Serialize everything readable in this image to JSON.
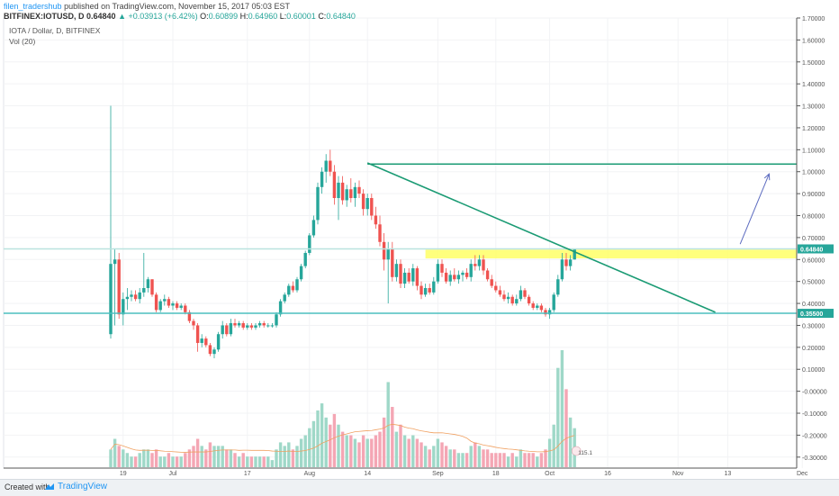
{
  "header": {
    "user": "filen_tradershub",
    "published": "published on TradingView.com, November 15, 2017 05:03 EST",
    "symbol_line": "BITFINEX:IOTUSD, D",
    "last": "0.64840",
    "change": "+0.03913 (+6.42%)",
    "o_label": "O:",
    "o": "0.60899",
    "h_label": "H:",
    "h": "0.64960",
    "l_label": "L:",
    "l": "0.60001",
    "c_label": "C:",
    "c": "0.64840"
  },
  "legend": {
    "title": "IOTA / Dollar, D, BITFINEX",
    "vol": "Vol (20)"
  },
  "footer": {
    "created": "Created with",
    "brand": "TradingView"
  },
  "colors": {
    "up": "#26a69a",
    "down": "#ef5350",
    "vol_up": "#9fd8c8",
    "vol_down": "#f4a6b4",
    "trendline": "#1b9b74",
    "support_line": "#4bbfbf",
    "zone": "#ffff66",
    "arrow": "#5c6bc0",
    "vol_ma": "#f0a060"
  },
  "chart_data": {
    "type": "candlestick",
    "y_axis": {
      "ticks": [
        "1.70000",
        "1.60000",
        "1.50000",
        "1.40000",
        "1.30000",
        "1.20000",
        "1.10000",
        "1.00000",
        "0.90000",
        "0.80000",
        "0.70000",
        "0.60000",
        "0.50000",
        "0.40000",
        "0.30000",
        "0.20000",
        "0.10000",
        "-0.00000",
        "-0.10000",
        "-0.20000",
        "-0.30000"
      ],
      "min": -0.35,
      "max": 1.7
    },
    "x_axis": {
      "ticks": [
        {
          "label": "19",
          "index": 3
        },
        {
          "label": "Jul",
          "index": 15
        },
        {
          "label": "17",
          "index": 33
        },
        {
          "label": "Aug",
          "index": 48
        },
        {
          "label": "14",
          "index": 62
        },
        {
          "label": "Sep",
          "index": 79
        },
        {
          "label": "18",
          "index": 93
        },
        {
          "label": "Oct",
          "index": 106
        },
        {
          "label": "16",
          "index": 120
        },
        {
          "label": "Nov",
          "index": 137
        },
        {
          "label": "13",
          "index": 149
        },
        {
          "label": "Dec",
          "index": 167
        }
      ]
    },
    "price_labels": [
      {
        "text": "0.64840",
        "value": 0.6484,
        "color": "#26a69a"
      },
      {
        "text": "0.35500",
        "value": 0.355,
        "color": "#26a69a"
      }
    ],
    "horizontal_lines": [
      {
        "value": 1.035,
        "start_index": 62,
        "color": "#1b9b74"
      },
      {
        "value": 0.355,
        "start_index": -1,
        "color": "#4bbfbf"
      },
      {
        "value": 0.6484,
        "start_index": -1,
        "color": "#b9e3df"
      }
    ],
    "trendline": {
      "from": {
        "index": 62,
        "value": 1.04
      },
      "to": {
        "index": 146,
        "value": 0.36
      }
    },
    "zone": {
      "low": 0.605,
      "high": 0.645,
      "start_index": 76
    },
    "arrow": {
      "from": {
        "index": 152,
        "value": 0.67
      },
      "to": {
        "index": 159,
        "value": 0.99
      }
    },
    "volume_label": "115.1",
    "candles": [
      {
        "o": 0.26,
        "h": 1.3,
        "l": 0.24,
        "c": 0.58,
        "v": 0.05
      },
      {
        "o": 0.58,
        "h": 0.65,
        "l": 0.3,
        "c": 0.6,
        "v": 0.08
      },
      {
        "o": 0.6,
        "h": 0.63,
        "l": 0.33,
        "c": 0.35,
        "v": 0.06
      },
      {
        "o": 0.35,
        "h": 0.45,
        "l": 0.3,
        "c": 0.42,
        "v": 0.05
      },
      {
        "o": 0.42,
        "h": 0.47,
        "l": 0.37,
        "c": 0.43,
        "v": 0.04
      },
      {
        "o": 0.43,
        "h": 0.46,
        "l": 0.41,
        "c": 0.44,
        "v": 0.03
      },
      {
        "o": 0.44,
        "h": 0.46,
        "l": 0.41,
        "c": 0.42,
        "v": 0.03
      },
      {
        "o": 0.42,
        "h": 0.47,
        "l": 0.4,
        "c": 0.45,
        "v": 0.04
      },
      {
        "o": 0.45,
        "h": 0.63,
        "l": 0.43,
        "c": 0.47,
        "v": 0.05
      },
      {
        "o": 0.47,
        "h": 0.52,
        "l": 0.45,
        "c": 0.51,
        "v": 0.05
      },
      {
        "o": 0.51,
        "h": 0.51,
        "l": 0.43,
        "c": 0.44,
        "v": 0.04
      },
      {
        "o": 0.44,
        "h": 0.45,
        "l": 0.36,
        "c": 0.37,
        "v": 0.05
      },
      {
        "o": 0.37,
        "h": 0.42,
        "l": 0.36,
        "c": 0.41,
        "v": 0.03
      },
      {
        "o": 0.41,
        "h": 0.44,
        "l": 0.39,
        "c": 0.42,
        "v": 0.03
      },
      {
        "o": 0.42,
        "h": 0.43,
        "l": 0.38,
        "c": 0.39,
        "v": 0.04
      },
      {
        "o": 0.39,
        "h": 0.41,
        "l": 0.37,
        "c": 0.4,
        "v": 0.03
      },
      {
        "o": 0.4,
        "h": 0.41,
        "l": 0.37,
        "c": 0.38,
        "v": 0.03
      },
      {
        "o": 0.38,
        "h": 0.4,
        "l": 0.37,
        "c": 0.39,
        "v": 0.03
      },
      {
        "o": 0.39,
        "h": 0.4,
        "l": 0.35,
        "c": 0.36,
        "v": 0.04
      },
      {
        "o": 0.36,
        "h": 0.37,
        "l": 0.31,
        "c": 0.32,
        "v": 0.05
      },
      {
        "o": 0.32,
        "h": 0.33,
        "l": 0.28,
        "c": 0.3,
        "v": 0.06
      },
      {
        "o": 0.3,
        "h": 0.31,
        "l": 0.18,
        "c": 0.22,
        "v": 0.08
      },
      {
        "o": 0.22,
        "h": 0.26,
        "l": 0.2,
        "c": 0.24,
        "v": 0.06
      },
      {
        "o": 0.24,
        "h": 0.25,
        "l": 0.2,
        "c": 0.21,
        "v": 0.05
      },
      {
        "o": 0.21,
        "h": 0.22,
        "l": 0.16,
        "c": 0.17,
        "v": 0.07
      },
      {
        "o": 0.17,
        "h": 0.2,
        "l": 0.15,
        "c": 0.19,
        "v": 0.06
      },
      {
        "o": 0.19,
        "h": 0.27,
        "l": 0.18,
        "c": 0.26,
        "v": 0.06
      },
      {
        "o": 0.26,
        "h": 0.32,
        "l": 0.24,
        "c": 0.3,
        "v": 0.06
      },
      {
        "o": 0.3,
        "h": 0.31,
        "l": 0.25,
        "c": 0.26,
        "v": 0.05
      },
      {
        "o": 0.26,
        "h": 0.33,
        "l": 0.25,
        "c": 0.31,
        "v": 0.05
      },
      {
        "o": 0.31,
        "h": 0.33,
        "l": 0.29,
        "c": 0.3,
        "v": 0.04
      },
      {
        "o": 0.3,
        "h": 0.32,
        "l": 0.29,
        "c": 0.31,
        "v": 0.03
      },
      {
        "o": 0.31,
        "h": 0.32,
        "l": 0.28,
        "c": 0.29,
        "v": 0.04
      },
      {
        "o": 0.29,
        "h": 0.31,
        "l": 0.28,
        "c": 0.3,
        "v": 0.03
      },
      {
        "o": 0.3,
        "h": 0.31,
        "l": 0.28,
        "c": 0.29,
        "v": 0.03
      },
      {
        "o": 0.29,
        "h": 0.31,
        "l": 0.28,
        "c": 0.3,
        "v": 0.03
      },
      {
        "o": 0.3,
        "h": 0.32,
        "l": 0.29,
        "c": 0.31,
        "v": 0.03
      },
      {
        "o": 0.31,
        "h": 0.32,
        "l": 0.29,
        "c": 0.3,
        "v": 0.03
      },
      {
        "o": 0.3,
        "h": 0.31,
        "l": 0.29,
        "c": 0.3,
        "v": 0.03
      },
      {
        "o": 0.3,
        "h": 0.31,
        "l": 0.29,
        "c": 0.3,
        "v": 0.02
      },
      {
        "o": 0.3,
        "h": 0.36,
        "l": 0.29,
        "c": 0.35,
        "v": 0.05
      },
      {
        "o": 0.35,
        "h": 0.42,
        "l": 0.34,
        "c": 0.41,
        "v": 0.07
      },
      {
        "o": 0.41,
        "h": 0.45,
        "l": 0.4,
        "c": 0.44,
        "v": 0.06
      },
      {
        "o": 0.44,
        "h": 0.49,
        "l": 0.43,
        "c": 0.48,
        "v": 0.07
      },
      {
        "o": 0.48,
        "h": 0.5,
        "l": 0.45,
        "c": 0.46,
        "v": 0.05
      },
      {
        "o": 0.46,
        "h": 0.52,
        "l": 0.45,
        "c": 0.51,
        "v": 0.06
      },
      {
        "o": 0.51,
        "h": 0.58,
        "l": 0.5,
        "c": 0.57,
        "v": 0.08
      },
      {
        "o": 0.57,
        "h": 0.64,
        "l": 0.56,
        "c": 0.63,
        "v": 0.09
      },
      {
        "o": 0.63,
        "h": 0.72,
        "l": 0.62,
        "c": 0.71,
        "v": 0.11
      },
      {
        "o": 0.71,
        "h": 0.8,
        "l": 0.7,
        "c": 0.78,
        "v": 0.13
      },
      {
        "o": 0.78,
        "h": 0.95,
        "l": 0.76,
        "c": 0.93,
        "v": 0.16
      },
      {
        "o": 0.93,
        "h": 1.02,
        "l": 0.9,
        "c": 1.0,
        "v": 0.18
      },
      {
        "o": 1.0,
        "h": 1.08,
        "l": 0.95,
        "c": 1.05,
        "v": 0.14
      },
      {
        "o": 1.05,
        "h": 1.1,
        "l": 0.98,
        "c": 1.0,
        "v": 0.12
      },
      {
        "o": 1.0,
        "h": 1.03,
        "l": 0.85,
        "c": 0.88,
        "v": 0.15
      },
      {
        "o": 0.88,
        "h": 0.98,
        "l": 0.78,
        "c": 0.95,
        "v": 0.12
      },
      {
        "o": 0.95,
        "h": 0.98,
        "l": 0.85,
        "c": 0.87,
        "v": 0.1
      },
      {
        "o": 0.87,
        "h": 0.94,
        "l": 0.84,
        "c": 0.92,
        "v": 0.09
      },
      {
        "o": 0.92,
        "h": 0.97,
        "l": 0.86,
        "c": 0.88,
        "v": 0.09
      },
      {
        "o": 0.88,
        "h": 0.95,
        "l": 0.84,
        "c": 0.93,
        "v": 0.08
      },
      {
        "o": 0.93,
        "h": 0.96,
        "l": 0.88,
        "c": 0.9,
        "v": 0.07
      },
      {
        "o": 0.9,
        "h": 0.92,
        "l": 0.8,
        "c": 0.83,
        "v": 0.09
      },
      {
        "o": 0.83,
        "h": 0.9,
        "l": 0.8,
        "c": 0.88,
        "v": 0.08
      },
      {
        "o": 0.88,
        "h": 0.9,
        "l": 0.78,
        "c": 0.8,
        "v": 0.08
      },
      {
        "o": 0.8,
        "h": 0.84,
        "l": 0.74,
        "c": 0.76,
        "v": 0.09
      },
      {
        "o": 0.76,
        "h": 0.8,
        "l": 0.66,
        "c": 0.68,
        "v": 0.1
      },
      {
        "o": 0.68,
        "h": 0.72,
        "l": 0.55,
        "c": 0.6,
        "v": 0.14
      },
      {
        "o": 0.6,
        "h": 0.68,
        "l": 0.4,
        "c": 0.65,
        "v": 0.24
      },
      {
        "o": 0.65,
        "h": 0.68,
        "l": 0.5,
        "c": 0.52,
        "v": 0.17
      },
      {
        "o": 0.52,
        "h": 0.6,
        "l": 0.5,
        "c": 0.58,
        "v": 0.1
      },
      {
        "o": 0.58,
        "h": 0.6,
        "l": 0.47,
        "c": 0.49,
        "v": 0.12
      },
      {
        "o": 0.49,
        "h": 0.56,
        "l": 0.47,
        "c": 0.54,
        "v": 0.09
      },
      {
        "o": 0.54,
        "h": 0.56,
        "l": 0.49,
        "c": 0.5,
        "v": 0.08
      },
      {
        "o": 0.5,
        "h": 0.58,
        "l": 0.48,
        "c": 0.56,
        "v": 0.09
      },
      {
        "o": 0.56,
        "h": 0.57,
        "l": 0.46,
        "c": 0.48,
        "v": 0.08
      },
      {
        "o": 0.48,
        "h": 0.5,
        "l": 0.42,
        "c": 0.44,
        "v": 0.07
      },
      {
        "o": 0.44,
        "h": 0.49,
        "l": 0.43,
        "c": 0.47,
        "v": 0.06
      },
      {
        "o": 0.47,
        "h": 0.49,
        "l": 0.44,
        "c": 0.45,
        "v": 0.05
      },
      {
        "o": 0.45,
        "h": 0.52,
        "l": 0.44,
        "c": 0.5,
        "v": 0.06
      },
      {
        "o": 0.5,
        "h": 0.6,
        "l": 0.49,
        "c": 0.58,
        "v": 0.08
      },
      {
        "o": 0.58,
        "h": 0.6,
        "l": 0.52,
        "c": 0.54,
        "v": 0.07
      },
      {
        "o": 0.54,
        "h": 0.56,
        "l": 0.49,
        "c": 0.5,
        "v": 0.06
      },
      {
        "o": 0.5,
        "h": 0.55,
        "l": 0.48,
        "c": 0.53,
        "v": 0.05
      },
      {
        "o": 0.53,
        "h": 0.56,
        "l": 0.5,
        "c": 0.51,
        "v": 0.05
      },
      {
        "o": 0.51,
        "h": 0.55,
        "l": 0.49,
        "c": 0.53,
        "v": 0.04
      },
      {
        "o": 0.53,
        "h": 0.55,
        "l": 0.5,
        "c": 0.54,
        "v": 0.04
      },
      {
        "o": 0.54,
        "h": 0.56,
        "l": 0.51,
        "c": 0.52,
        "v": 0.04
      },
      {
        "o": 0.52,
        "h": 0.6,
        "l": 0.5,
        "c": 0.58,
        "v": 0.06
      },
      {
        "o": 0.58,
        "h": 0.62,
        "l": 0.55,
        "c": 0.57,
        "v": 0.07
      },
      {
        "o": 0.57,
        "h": 0.62,
        "l": 0.55,
        "c": 0.6,
        "v": 0.06
      },
      {
        "o": 0.6,
        "h": 0.62,
        "l": 0.53,
        "c": 0.55,
        "v": 0.05
      },
      {
        "o": 0.55,
        "h": 0.56,
        "l": 0.5,
        "c": 0.51,
        "v": 0.05
      },
      {
        "o": 0.51,
        "h": 0.53,
        "l": 0.47,
        "c": 0.48,
        "v": 0.04
      },
      {
        "o": 0.48,
        "h": 0.5,
        "l": 0.45,
        "c": 0.46,
        "v": 0.04
      },
      {
        "o": 0.46,
        "h": 0.48,
        "l": 0.43,
        "c": 0.44,
        "v": 0.04
      },
      {
        "o": 0.44,
        "h": 0.46,
        "l": 0.41,
        "c": 0.42,
        "v": 0.04
      },
      {
        "o": 0.42,
        "h": 0.45,
        "l": 0.4,
        "c": 0.43,
        "v": 0.03
      },
      {
        "o": 0.43,
        "h": 0.44,
        "l": 0.39,
        "c": 0.4,
        "v": 0.04
      },
      {
        "o": 0.4,
        "h": 0.44,
        "l": 0.39,
        "c": 0.42,
        "v": 0.03
      },
      {
        "o": 0.42,
        "h": 0.48,
        "l": 0.41,
        "c": 0.46,
        "v": 0.05
      },
      {
        "o": 0.46,
        "h": 0.47,
        "l": 0.42,
        "c": 0.43,
        "v": 0.04
      },
      {
        "o": 0.43,
        "h": 0.44,
        "l": 0.39,
        "c": 0.4,
        "v": 0.04
      },
      {
        "o": 0.4,
        "h": 0.41,
        "l": 0.37,
        "c": 0.38,
        "v": 0.04
      },
      {
        "o": 0.38,
        "h": 0.4,
        "l": 0.37,
        "c": 0.39,
        "v": 0.03
      },
      {
        "o": 0.39,
        "h": 0.4,
        "l": 0.36,
        "c": 0.37,
        "v": 0.04
      },
      {
        "o": 0.37,
        "h": 0.38,
        "l": 0.34,
        "c": 0.35,
        "v": 0.05
      },
      {
        "o": 0.35,
        "h": 0.38,
        "l": 0.33,
        "c": 0.37,
        "v": 0.08
      },
      {
        "o": 0.37,
        "h": 0.45,
        "l": 0.36,
        "c": 0.44,
        "v": 0.12
      },
      {
        "o": 0.44,
        "h": 0.53,
        "l": 0.43,
        "c": 0.51,
        "v": 0.28
      },
      {
        "o": 0.51,
        "h": 0.63,
        "l": 0.5,
        "c": 0.6,
        "v": 0.33
      },
      {
        "o": 0.6,
        "h": 0.63,
        "l": 0.55,
        "c": 0.57,
        "v": 0.22
      },
      {
        "o": 0.57,
        "h": 0.62,
        "l": 0.55,
        "c": 0.6,
        "v": 0.14
      },
      {
        "o": 0.6,
        "h": 0.65,
        "l": 0.6,
        "c": 0.6484,
        "v": 0.11
      }
    ]
  }
}
